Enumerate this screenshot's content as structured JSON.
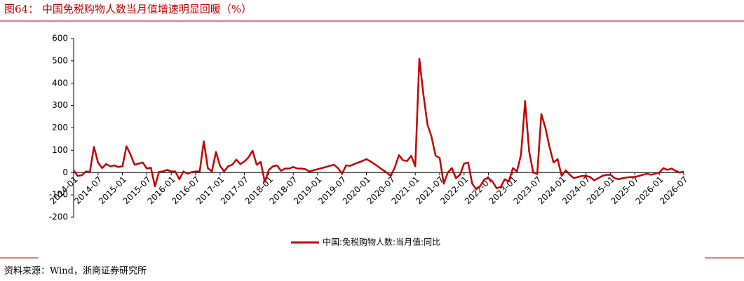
{
  "chart_data": {
    "type": "line",
    "title": "图64：  中国免税购物人数当月值增速明显回暖（%）",
    "source": "资料来源：Wind，浙商证券研究所",
    "categories": [
      "2014-01",
      null,
      null,
      null,
      null,
      null,
      "2014-07",
      null,
      null,
      null,
      null,
      null,
      "2015-01",
      null,
      null,
      null,
      null,
      null,
      "2015-07",
      null,
      null,
      null,
      null,
      null,
      "2016-01",
      null,
      null,
      null,
      null,
      null,
      "2016-07",
      null,
      null,
      null,
      null,
      null,
      "2017-01",
      null,
      null,
      null,
      null,
      null,
      "2017-07",
      null,
      null,
      null,
      null,
      null,
      "2018-01",
      null,
      null,
      null,
      null,
      null,
      "2018-07",
      null,
      null,
      null,
      null,
      null,
      "2019-01",
      null,
      null,
      null,
      null,
      null,
      "2019-07",
      null,
      null,
      null,
      null,
      null,
      "2020-01",
      null,
      null,
      null,
      null,
      null,
      "2020-07",
      null,
      null,
      null,
      null,
      null,
      "2021-01",
      null,
      null,
      null,
      null,
      null,
      "2021-07",
      null,
      null,
      null,
      null,
      null,
      "2022-01",
      null,
      null,
      null,
      null,
      null,
      "2022-07",
      null,
      null,
      null,
      null,
      null,
      "2023-01",
      null,
      null,
      null,
      null,
      null,
      "2023-07",
      null,
      null,
      null,
      null,
      null,
      "2024-01",
      null,
      null,
      null,
      null,
      null,
      "2024-07",
      null,
      null,
      null,
      null,
      null,
      "2025-01",
      null,
      null,
      null,
      null,
      null,
      "2025-07",
      null,
      null,
      null,
      null,
      null,
      "2026-01",
      null,
      null,
      null,
      null,
      null,
      "2026-07"
    ],
    "series": [
      {
        "name": "中国:免税购物人数:当月值:同比",
        "color": "#c00000",
        "values": [
          10,
          -15,
          -12,
          5,
          3,
          115,
          45,
          20,
          38,
          28,
          32,
          25,
          28,
          118,
          80,
          35,
          40,
          45,
          18,
          22,
          -62,
          3,
          5,
          12,
          5,
          5,
          -30,
          5,
          -5,
          2,
          5,
          5,
          140,
          20,
          5,
          92,
          30,
          5,
          28,
          35,
          58,
          38,
          50,
          68,
          98,
          35,
          48,
          -42,
          12,
          28,
          32,
          8,
          18,
          18,
          25,
          18,
          18,
          15,
          5,
          10,
          15,
          20,
          25,
          30,
          35,
          20,
          -5,
          32,
          30,
          38,
          45,
          52,
          60,
          50,
          38,
          25,
          12,
          0,
          -15,
          25,
          78,
          55,
          52,
          75,
          28,
          510,
          350,
          215,
          160,
          75,
          65,
          -50,
          0,
          20,
          -25,
          -10,
          40,
          45,
          -50,
          -75,
          -60,
          -30,
          -25,
          -40,
          -70,
          -65,
          -30,
          -40,
          20,
          5,
          80,
          320,
          95,
          0,
          -5,
          262,
          200,
          115,
          45,
          60,
          -15,
          10,
          -10,
          -25,
          -20,
          -15,
          -15,
          -20,
          -35,
          -25,
          -15,
          -10,
          -10,
          -25,
          -30,
          -25,
          -22,
          -20,
          -20,
          -15,
          -10,
          -5,
          -10,
          -5,
          0,
          20,
          12,
          18,
          8,
          0,
          5
        ]
      }
    ],
    "ylim": [
      -200,
      600
    ],
    "yticks": [
      -200,
      -100,
      0,
      100,
      200,
      300,
      400,
      500,
      600
    ],
    "grid": false
  }
}
